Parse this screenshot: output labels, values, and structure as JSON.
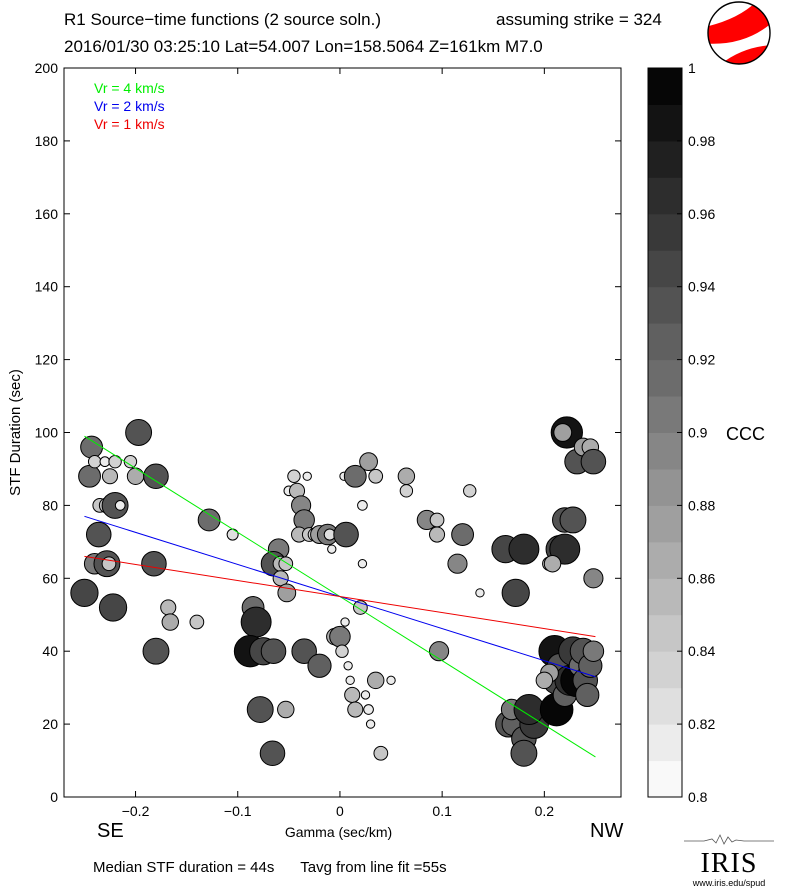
{
  "header": {
    "line1": "R1 Source−time functions (2 source soln.)",
    "line2": "2016/01/30 03:25:10  Lat=54.007 Lon=158.5064  Z=161km  M7.0",
    "strike": "assuming strike = 324"
  },
  "footer": {
    "median": "Median STF duration = 44s",
    "tavg": "Tavg from line fit =55s"
  },
  "directions": {
    "left": "SE",
    "right": "NW"
  },
  "logo": {
    "text": "IRIS",
    "url": "www.iris.edu/spud"
  },
  "colorbar": {
    "label": "CCC",
    "min": 0.8,
    "max": 1.0,
    "levels": 20,
    "ticks": [
      "0.8",
      "0.82",
      "0.84",
      "0.86",
      "0.88",
      "0.9",
      "0.92",
      "0.94",
      "0.96",
      "0.98",
      "1"
    ]
  },
  "colors": {
    "vr4": "#00ee00",
    "vr2": "#0000ee",
    "vr1": "#ee0000",
    "beachball": "#ff0000"
  },
  "chart_data": {
    "type": "scatter",
    "title": "R1 Source−time functions (2 source soln.)",
    "xlabel": "Gamma (sec/km)",
    "ylabel": "STF Duration (sec)",
    "xlim": [
      -0.27,
      0.275
    ],
    "ylim": [
      0,
      200
    ],
    "xticks": [
      "−0.2",
      "−0.1",
      "0",
      "0.1",
      "0.2"
    ],
    "xtick_values": [
      -0.2,
      -0.1,
      0,
      0.1,
      0.2
    ],
    "yticks": [
      "0",
      "20",
      "40",
      "60",
      "80",
      "100",
      "120",
      "140",
      "160",
      "180",
      "200"
    ],
    "ytick_values": [
      0,
      20,
      40,
      60,
      80,
      100,
      120,
      140,
      160,
      180,
      200
    ],
    "legend": [
      {
        "label": "Vr = 4 km/s",
        "color": "#00ee00"
      },
      {
        "label": "Vr = 2 km/s",
        "color": "#0000ee"
      },
      {
        "label": "Vr = 1 km/s",
        "color": "#ee0000"
      }
    ],
    "lines": [
      {
        "name": "Vr = 4 km/s",
        "color": "#00ee00",
        "x": [
          -0.25,
          0.25
        ],
        "y": [
          99,
          11
        ]
      },
      {
        "name": "Vr = 2 km/s",
        "color": "#0000ee",
        "x": [
          -0.25,
          0.25
        ],
        "y": [
          77,
          33
        ]
      },
      {
        "name": "Vr = 1 km/s",
        "color": "#ee0000",
        "x": [
          -0.25,
          0.25
        ],
        "y": [
          66,
          44
        ]
      }
    ],
    "points": [
      [
        -0.245,
        88,
        0.91
      ],
      [
        -0.243,
        96,
        0.91
      ],
      [
        -0.24,
        92,
        0.84
      ],
      [
        -0.235,
        80,
        0.85
      ],
      [
        -0.23,
        92,
        0.82
      ],
      [
        -0.225,
        88,
        0.86
      ],
      [
        -0.22,
        92,
        0.84
      ],
      [
        -0.228,
        80,
        0.86
      ],
      [
        -0.22,
        80,
        0.94
      ],
      [
        -0.215,
        80,
        0.82
      ],
      [
        -0.236,
        72,
        0.93
      ],
      [
        -0.24,
        64,
        0.9
      ],
      [
        -0.228,
        64,
        0.94
      ],
      [
        -0.226,
        64,
        0.85
      ],
      [
        -0.25,
        56,
        0.95
      ],
      [
        -0.222,
        52,
        0.95
      ],
      [
        -0.205,
        92,
        0.84
      ],
      [
        -0.2,
        88,
        0.87
      ],
      [
        -0.197,
        100,
        0.94
      ],
      [
        -0.18,
        88,
        0.93
      ],
      [
        -0.182,
        64,
        0.93
      ],
      [
        -0.168,
        52,
        0.86
      ],
      [
        -0.166,
        48,
        0.87
      ],
      [
        -0.18,
        40,
        0.94
      ],
      [
        -0.14,
        48,
        0.85
      ],
      [
        -0.128,
        76,
        0.91
      ],
      [
        -0.105,
        72,
        0.83
      ],
      [
        -0.085,
        52,
        0.91
      ],
      [
        -0.082,
        48,
        0.97
      ],
      [
        -0.088,
        40,
        0.98
      ],
      [
        -0.075,
        40,
        0.95
      ],
      [
        -0.065,
        40,
        0.93
      ],
      [
        -0.078,
        24,
        0.94
      ],
      [
        -0.053,
        24,
        0.87
      ],
      [
        -0.066,
        12,
        0.93
      ],
      [
        -0.06,
        68,
        0.9
      ],
      [
        -0.065,
        64,
        0.93
      ],
      [
        -0.058,
        64,
        0.86
      ],
      [
        -0.053,
        64,
        0.85
      ],
      [
        -0.058,
        60,
        0.86
      ],
      [
        -0.052,
        56,
        0.88
      ],
      [
        -0.045,
        88,
        0.84
      ],
      [
        -0.05,
        84,
        0.82
      ],
      [
        -0.042,
        84,
        0.86
      ],
      [
        -0.032,
        88,
        0.81
      ],
      [
        -0.038,
        80,
        0.89
      ],
      [
        -0.035,
        76,
        0.9
      ],
      [
        -0.04,
        72,
        0.86
      ],
      [
        -0.03,
        72,
        0.85
      ],
      [
        -0.025,
        72,
        0.84
      ],
      [
        -0.02,
        72,
        0.88
      ],
      [
        -0.012,
        72,
        0.9
      ],
      [
        -0.01,
        72,
        0.83
      ],
      [
        -0.008,
        68,
        0.81
      ],
      [
        -0.035,
        40,
        0.93
      ],
      [
        -0.02,
        36,
        0.92
      ],
      [
        -0.005,
        44,
        0.87
      ],
      [
        0.0,
        44,
        0.9
      ],
      [
        0.002,
        40,
        0.84
      ],
      [
        0.005,
        48,
        0.81
      ],
      [
        0.008,
        36,
        0.81
      ],
      [
        0.01,
        32,
        0.81
      ],
      [
        0.012,
        28,
        0.86
      ],
      [
        0.015,
        24,
        0.86
      ],
      [
        0.02,
        52,
        0.85
      ],
      [
        0.025,
        28,
        0.81
      ],
      [
        0.028,
        24,
        0.82
      ],
      [
        0.03,
        20,
        0.81
      ],
      [
        0.035,
        32,
        0.87
      ],
      [
        0.04,
        12,
        0.85
      ],
      [
        0.05,
        32,
        0.81
      ],
      [
        0.006,
        72,
        0.93
      ],
      [
        0.004,
        88,
        0.81
      ],
      [
        0.015,
        88,
        0.91
      ],
      [
        0.028,
        92,
        0.88
      ],
      [
        0.035,
        88,
        0.85
      ],
      [
        0.022,
        80,
        0.82
      ],
      [
        0.022,
        64,
        0.81
      ],
      [
        0.065,
        88,
        0.87
      ],
      [
        0.065,
        84,
        0.84
      ],
      [
        0.085,
        76,
        0.89
      ],
      [
        0.095,
        76,
        0.85
      ],
      [
        0.095,
        72,
        0.86
      ],
      [
        0.12,
        72,
        0.91
      ],
      [
        0.115,
        64,
        0.89
      ],
      [
        0.127,
        84,
        0.84
      ],
      [
        0.137,
        56,
        0.81
      ],
      [
        0.097,
        40,
        0.89
      ],
      [
        0.162,
        68,
        0.95
      ],
      [
        0.18,
        68,
        0.97
      ],
      [
        0.172,
        56,
        0.95
      ],
      [
        0.215,
        68,
        0.95
      ],
      [
        0.22,
        68,
        0.97
      ],
      [
        0.22,
        76,
        0.93
      ],
      [
        0.228,
        76,
        0.94
      ],
      [
        0.205,
        64,
        0.85
      ],
      [
        0.208,
        64,
        0.87
      ],
      [
        0.248,
        60,
        0.89
      ],
      [
        0.222,
        100,
        0.98
      ],
      [
        0.218,
        100,
        0.88
      ],
      [
        0.232,
        92,
        0.93
      ],
      [
        0.238,
        96,
        0.88
      ],
      [
        0.245,
        96,
        0.87
      ],
      [
        0.248,
        92,
        0.93
      ],
      [
        0.165,
        20,
        0.94
      ],
      [
        0.17,
        20,
        0.92
      ],
      [
        0.168,
        24,
        0.9
      ],
      [
        0.18,
        16,
        0.93
      ],
      [
        0.19,
        20,
        0.96
      ],
      [
        0.185,
        24,
        0.97
      ],
      [
        0.18,
        12,
        0.94
      ],
      [
        0.212,
        24,
        0.99
      ],
      [
        0.21,
        40,
        0.98
      ],
      [
        0.212,
        32,
        0.95
      ],
      [
        0.215,
        36,
        0.93
      ],
      [
        0.22,
        28,
        0.92
      ],
      [
        0.225,
        32,
        0.97
      ],
      [
        0.232,
        32,
        0.99
      ],
      [
        0.228,
        40,
        0.96
      ],
      [
        0.235,
        36,
        0.91
      ],
      [
        0.238,
        40,
        0.94
      ],
      [
        0.24,
        32,
        0.93
      ],
      [
        0.242,
        28,
        0.92
      ],
      [
        0.245,
        36,
        0.92
      ],
      [
        0.248,
        40,
        0.9
      ],
      [
        0.205,
        34,
        0.88
      ],
      [
        0.2,
        32,
        0.87
      ]
    ]
  }
}
